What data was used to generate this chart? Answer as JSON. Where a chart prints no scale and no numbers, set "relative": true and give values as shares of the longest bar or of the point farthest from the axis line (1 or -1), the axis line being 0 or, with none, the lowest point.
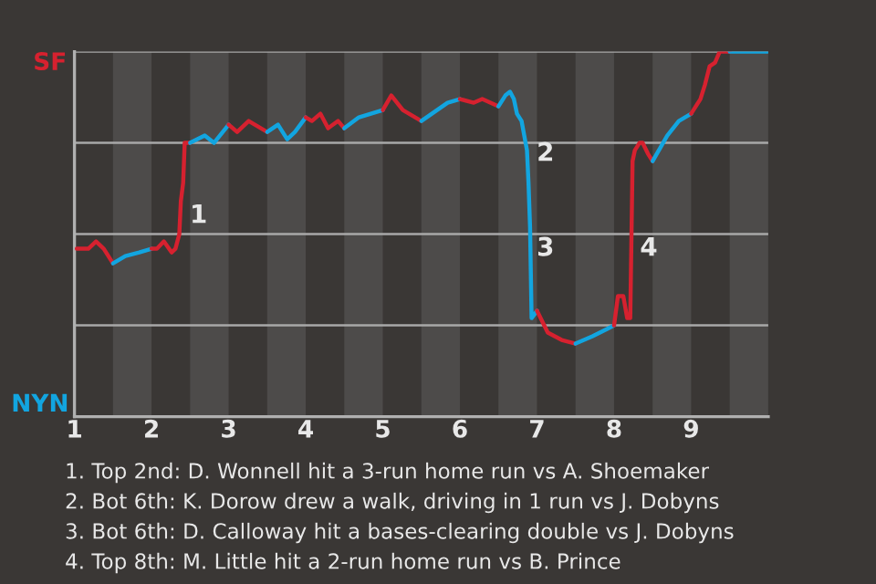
{
  "chart_data": {
    "type": "line",
    "relative": true,
    "ylabel": "NYN",
    "xlim": [
      1,
      10
    ],
    "xticks": [
      1,
      2,
      3,
      4,
      5,
      6,
      7,
      8,
      9
    ],
    "ref_lines": [
      {
        "axis": "y",
        "value": 0.25,
        "color": "#a8a8a8"
      },
      {
        "axis": "y",
        "value": 0.5,
        "color": "#a8a8a8"
      },
      {
        "axis": "y",
        "value": 0.75,
        "color": "#a8a8a8"
      },
      {
        "axis": "y",
        "value": 1,
        "color": "#a8a8a8"
      }
    ],
    "bands": [
      {
        "axis": "x",
        "from": 1.5,
        "to": 2,
        "color": "#4d4b4a"
      },
      {
        "axis": "x",
        "from": 2.5,
        "to": 3,
        "color": "#4d4b4a"
      },
      {
        "axis": "x",
        "from": 3.5,
        "to": 4,
        "color": "#4d4b4a"
      },
      {
        "axis": "x",
        "from": 4.5,
        "to": 5,
        "color": "#4d4b4a"
      },
      {
        "axis": "x",
        "from": 5.5,
        "to": 6,
        "color": "#4d4b4a"
      },
      {
        "axis": "x",
        "from": 6.5,
        "to": 7,
        "color": "#4d4b4a"
      },
      {
        "axis": "x",
        "from": 7.5,
        "to": 8,
        "color": "#4d4b4a"
      },
      {
        "axis": "x",
        "from": 8.5,
        "to": 9,
        "color": "#4d4b4a"
      },
      {
        "axis": "x",
        "from": 9.5,
        "to": 10,
        "color": "#4d4b4a"
      }
    ],
    "series": [
      {
        "color": "#d6212f",
        "x": [
          1.03,
          1.18,
          1.28,
          1.38,
          1.5
        ],
        "values": [
          0.46,
          0.46,
          0.48,
          0.46,
          0.42
        ]
      },
      {
        "color": "#12a5e0",
        "x": [
          1.5,
          1.66,
          1.84,
          2.0
        ],
        "values": [
          0.42,
          0.44,
          0.45,
          0.46
        ]
      },
      {
        "color": "#d6212f",
        "x": [
          2.0,
          2.07,
          2.16,
          2.26,
          2.31,
          2.36,
          2.38,
          2.41,
          2.43,
          2.5
        ],
        "values": [
          0.46,
          0.46,
          0.48,
          0.45,
          0.46,
          0.5,
          0.59,
          0.64,
          0.75,
          0.75
        ]
      },
      {
        "color": "#12a5e0",
        "x": [
          2.5,
          2.69,
          2.81,
          3.0
        ],
        "values": [
          0.75,
          0.77,
          0.75,
          0.8
        ]
      },
      {
        "color": "#d6212f",
        "x": [
          3.0,
          3.11,
          3.26,
          3.5
        ],
        "values": [
          0.8,
          0.78,
          0.81,
          0.78
        ]
      },
      {
        "color": "#12a5e0",
        "x": [
          3.5,
          3.64,
          3.76,
          3.86,
          4.0
        ],
        "values": [
          0.78,
          0.8,
          0.76,
          0.78,
          0.82
        ]
      },
      {
        "color": "#d6212f",
        "x": [
          4.0,
          4.08,
          4.19,
          4.29,
          4.42,
          4.5
        ],
        "values": [
          0.82,
          0.81,
          0.83,
          0.79,
          0.81,
          0.79
        ]
      },
      {
        "color": "#12a5e0",
        "x": [
          4.5,
          4.69,
          5.0
        ],
        "values": [
          0.79,
          0.82,
          0.84
        ]
      },
      {
        "color": "#d6212f",
        "x": [
          5.0,
          5.11,
          5.26,
          5.5
        ],
        "values": [
          0.84,
          0.88,
          0.84,
          0.81
        ]
      },
      {
        "color": "#12a5e0",
        "x": [
          5.5,
          5.84,
          6.0
        ],
        "values": [
          0.81,
          0.86,
          0.87
        ]
      },
      {
        "color": "#d6212f",
        "x": [
          6.0,
          6.18,
          6.29,
          6.5
        ],
        "values": [
          0.87,
          0.86,
          0.87,
          0.85
        ]
      },
      {
        "color": "#12a5e0",
        "x": [
          6.5,
          6.59,
          6.65,
          6.7,
          6.74,
          6.8,
          6.87,
          6.89,
          6.91,
          6.93,
          7.0
        ],
        "values": [
          0.85,
          0.88,
          0.89,
          0.87,
          0.83,
          0.81,
          0.73,
          0.64,
          0.52,
          0.27,
          0.29
        ]
      },
      {
        "color": "#d6212f",
        "x": [
          7.0,
          7.14,
          7.32,
          7.5
        ],
        "values": [
          0.29,
          0.23,
          0.21,
          0.2
        ]
      },
      {
        "color": "#12a5e0",
        "x": [
          7.5,
          7.72,
          7.91,
          8.0
        ],
        "values": [
          0.2,
          0.22,
          0.24,
          0.25
        ]
      },
      {
        "color": "#d6212f",
        "x": [
          8.0,
          8.05,
          8.12,
          8.17,
          8.21,
          8.24,
          8.27,
          8.33,
          8.37,
          8.44,
          8.5
        ],
        "values": [
          0.25,
          0.33,
          0.33,
          0.27,
          0.27,
          0.7,
          0.73,
          0.75,
          0.75,
          0.72,
          0.7
        ]
      },
      {
        "color": "#12a5e0",
        "x": [
          8.5,
          8.69,
          8.84,
          9.0
        ],
        "values": [
          0.7,
          0.77,
          0.81,
          0.83
        ]
      },
      {
        "color": "#d6212f",
        "x": [
          9.0,
          9.12,
          9.18,
          9.24,
          9.31,
          9.37,
          9.5
        ],
        "values": [
          0.83,
          0.87,
          0.91,
          0.96,
          0.97,
          1,
          1
        ]
      },
      {
        "color": "#12a5e0",
        "x": [
          9.5,
          10
        ],
        "values": [
          1,
          1
        ]
      }
    ],
    "annotations": [
      {
        "text": "SF",
        "x": 1,
        "y": 1
      },
      {
        "text": "1",
        "x": 2.43,
        "y": 0.55
      },
      {
        "text": "2",
        "x": 6.93,
        "y": 0.72
      },
      {
        "text": "3",
        "x": 6.93,
        "y": 0.46
      },
      {
        "text": "4",
        "x": 8.27,
        "y": 0.46
      },
      "1. Top 2nd: D. Wonnell hit a 3-run home run vs A. Shoemaker",
      "2. Bot 6th: K. Dorow drew a walk, driving in 1 run vs J. Dobyns",
      "3. Bot 6th: D. Calloway hit a bases-clearing double vs J. Dobyns",
      "4. Top 8th: M. Little hit a 2-run home run vs B. Prince"
    ]
  }
}
